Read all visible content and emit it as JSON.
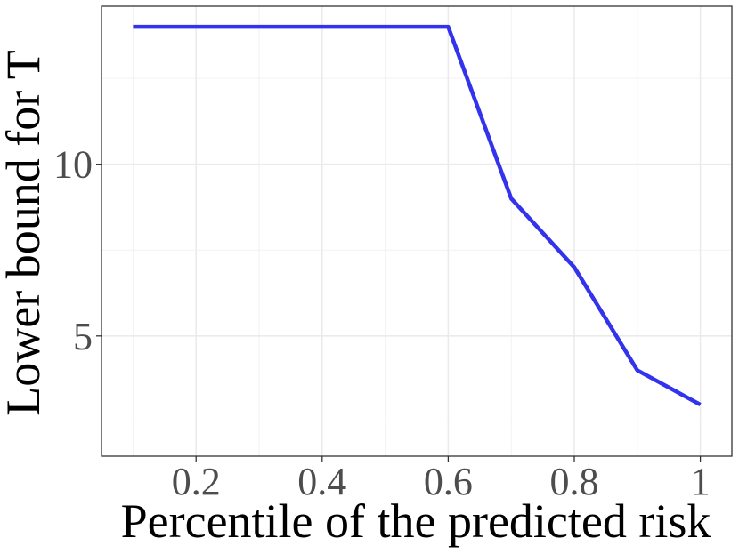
{
  "chart_data": {
    "type": "line",
    "title": "",
    "xlabel": "Percentile of the predicted risk",
    "ylabel": "Lower bound for T",
    "x": [
      0.1,
      0.2,
      0.3,
      0.4,
      0.5,
      0.6,
      0.7,
      0.8,
      0.9,
      1.0
    ],
    "series": [
      {
        "values": [
          14,
          14,
          14,
          14,
          14,
          14,
          9,
          7,
          4,
          3
        ],
        "color": "#3333ee"
      }
    ],
    "xlim": [
      0.05,
      1.05
    ],
    "ylim": [
      1.5,
      14.6
    ],
    "xticks": [
      0.2,
      0.4,
      0.6,
      0.8,
      1.0
    ],
    "xtick_labels": [
      "0.2",
      "0.4",
      "0.6",
      "0.8",
      "1"
    ],
    "yticks": [
      5,
      10
    ],
    "ytick_labels": [
      "5",
      "10"
    ],
    "grid": true
  }
}
